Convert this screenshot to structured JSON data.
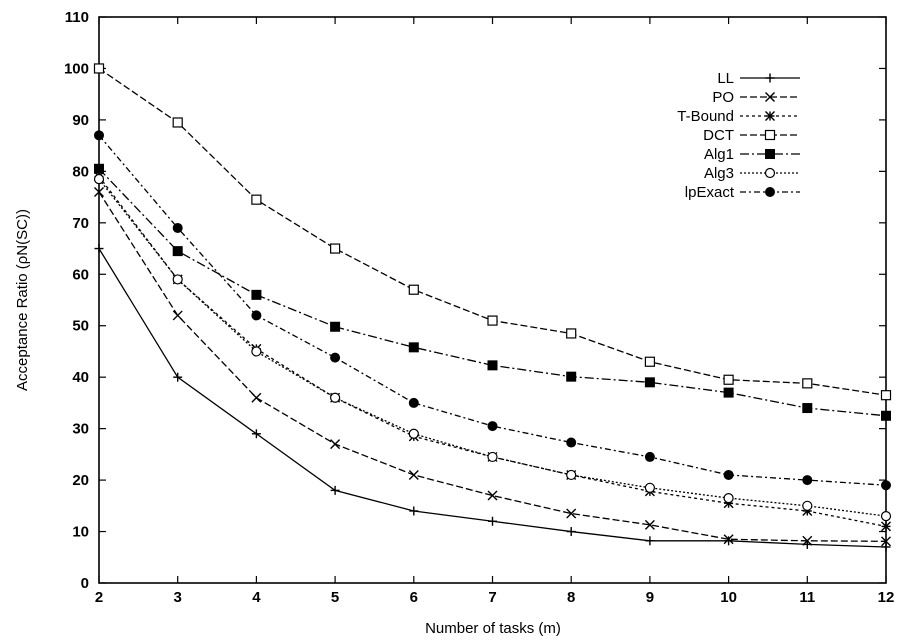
{
  "chart_data": {
    "type": "line",
    "title": "",
    "xlabel": "Number of tasks (m)",
    "ylabel": "Acceptance Ratio (ρN(SC))",
    "xlim": [
      2,
      12
    ],
    "ylim": [
      0,
      110
    ],
    "x": [
      2,
      3,
      4,
      5,
      6,
      7,
      8,
      9,
      10,
      11,
      12
    ],
    "x_ticks": [
      "2",
      "3",
      "4",
      "5",
      "6",
      "7",
      "8",
      "9",
      "10",
      "11",
      "12"
    ],
    "y_ticks": [
      "0",
      "10",
      "20",
      "30",
      "40",
      "50",
      "60",
      "70",
      "80",
      "90",
      "100",
      "110"
    ],
    "grid": false,
    "legend_position": "top-right",
    "series": [
      {
        "name": "LL",
        "marker": "plus",
        "dash": "",
        "values": [
          65,
          40,
          29,
          18,
          14,
          12,
          10,
          8.2,
          8.2,
          7.5,
          7
        ]
      },
      {
        "name": "PO",
        "marker": "x",
        "dash": "7,3",
        "values": [
          76,
          52,
          36,
          27,
          21,
          17,
          13.5,
          11.3,
          8.5,
          8.2,
          8.1
        ]
      },
      {
        "name": "T-Bound",
        "marker": "asterisk",
        "dash": "3,3",
        "values": [
          79,
          59,
          45.5,
          36,
          28.5,
          24.5,
          21,
          17.8,
          15.5,
          14,
          11
        ]
      },
      {
        "name": "DCT",
        "marker": "open-square",
        "dash": "7,3",
        "values": [
          100,
          89.5,
          74.5,
          65,
          57,
          51,
          48.5,
          43,
          39.5,
          38.8,
          36.5
        ]
      },
      {
        "name": "Alg1",
        "marker": "filled-square",
        "dash": "9,3,2,3",
        "values": [
          80.5,
          64.5,
          56,
          49.8,
          45.8,
          42.3,
          40.1,
          39,
          37,
          34,
          32.5
        ]
      },
      {
        "name": "Alg3",
        "marker": "open-circle",
        "dash": "2,2",
        "values": [
          78.5,
          59,
          45,
          36,
          29,
          24.5,
          21,
          18.5,
          16.5,
          15,
          13
        ]
      },
      {
        "name": "lpExact",
        "marker": "filled-circle",
        "dash": "6,3,2,3",
        "values": [
          87,
          69,
          52,
          43.8,
          35,
          30.5,
          27.3,
          24.5,
          21,
          20,
          19
        ]
      }
    ]
  }
}
